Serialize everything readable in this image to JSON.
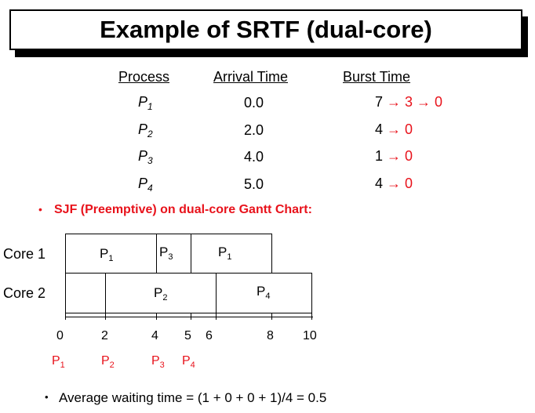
{
  "title": "Example of SRTF (dual-core)",
  "table": {
    "headers": {
      "process": "Process",
      "arrival": "Arrival Time",
      "burst": "Burst Time"
    },
    "rows": [
      {
        "p": "P",
        "sub": "1",
        "arrival": "0.0",
        "burst_start": "7",
        "burst_steps": "→ 3 → 0"
      },
      {
        "p": "P",
        "sub": "2",
        "arrival": "2.0",
        "burst_start": "4",
        "burst_steps": "→ 0"
      },
      {
        "p": "P",
        "sub": "3",
        "arrival": "4.0",
        "burst_start": "1",
        "burst_steps": "→ 0"
      },
      {
        "p": "P",
        "sub": "4",
        "arrival": "5.0",
        "burst_start": "4",
        "burst_steps": "→ 0"
      }
    ]
  },
  "bullet1": {
    "marker": "•",
    "text": "SJF (Preemptive) on dual-core Gantt Chart:"
  },
  "gantt": {
    "core1": {
      "label": "Core 1",
      "segments": [
        {
          "name": "P",
          "sub": "1"
        },
        {
          "name": "P",
          "sub": "3"
        },
        {
          "name": "P",
          "sub": "1"
        }
      ]
    },
    "core2": {
      "label": "Core 2",
      "segments": [
        {
          "name": "P",
          "sub": "2"
        },
        {
          "name": "P",
          "sub": "4"
        }
      ]
    },
    "ticks": [
      "0",
      "2",
      "4",
      "5",
      "6",
      "8",
      "10"
    ],
    "arrivals": [
      {
        "name": "P",
        "sub": "1"
      },
      {
        "name": "P",
        "sub": "2"
      },
      {
        "name": "P",
        "sub": "3"
      },
      {
        "name": "P",
        "sub": "4"
      }
    ]
  },
  "bullet2": {
    "marker": "•",
    "text": "Average waiting time = (1 + 0 + 0 + 1)/4 = 0.5"
  },
  "colors": {
    "accent": "#e8121b"
  }
}
